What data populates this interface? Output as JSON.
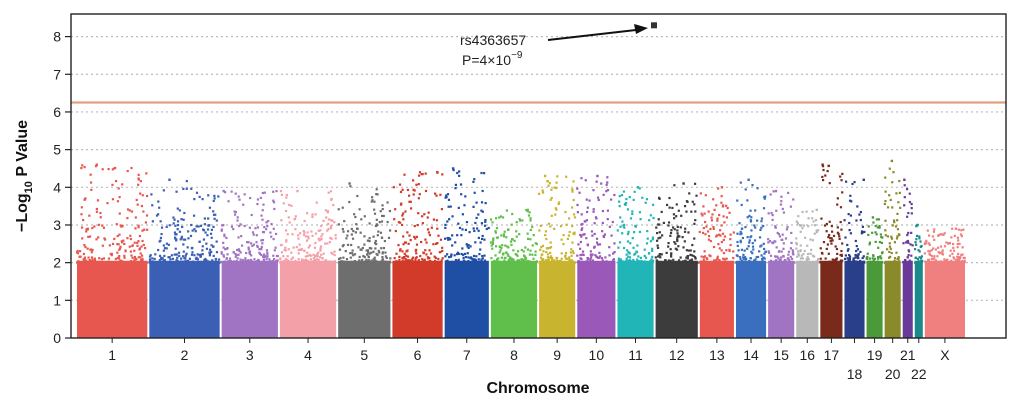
{
  "chart_data": {
    "type": "scatter",
    "subtype": "manhattan",
    "title": "",
    "xlabel": "Chromosome",
    "ylabel_main": "−Log",
    "ylabel_sub": "10",
    "ylabel_tail": " P Value",
    "ylim": [
      0,
      8.6
    ],
    "yticks": [
      "0",
      "1",
      "2",
      "3",
      "4",
      "5",
      "6",
      "7",
      "8"
    ],
    "grid": "dotted-horizontal",
    "threshold": {
      "value": 6.25,
      "color": "#e0a080"
    },
    "annotation": {
      "snp": "rs4363657",
      "p_text": "P=4×10",
      "p_exp": "−9",
      "value": 8.3,
      "chromosome": "12"
    },
    "chromosomes": [
      {
        "label": "1",
        "color": "#e8574f",
        "max": 4.6,
        "label_row": 1
      },
      {
        "label": "2",
        "color": "#3a5fb5",
        "max": 4.2,
        "label_row": 1
      },
      {
        "label": "3",
        "color": "#a074c2",
        "max": 3.9,
        "label_row": 1
      },
      {
        "label": "4",
        "color": "#f4a0a8",
        "max": 3.9,
        "label_row": 1
      },
      {
        "label": "5",
        "color": "#6e6e6e",
        "max": 4.1,
        "label_row": 1
      },
      {
        "label": "6",
        "color": "#d23a2a",
        "max": 4.4,
        "label_row": 1
      },
      {
        "label": "7",
        "color": "#1f4fa5",
        "max": 4.5,
        "label_row": 1
      },
      {
        "label": "8",
        "color": "#5fbf4a",
        "max": 3.4,
        "label_row": 1
      },
      {
        "label": "9",
        "color": "#c8b42e",
        "max": 4.3,
        "label_row": 1
      },
      {
        "label": "10",
        "color": "#9a58b8",
        "max": 4.3,
        "label_row": 1
      },
      {
        "label": "11",
        "color": "#22b5b8",
        "max": 4.0,
        "label_row": 1
      },
      {
        "label": "12",
        "color": "#3c3c3c",
        "max": 4.1,
        "label_row": 1
      },
      {
        "label": "13",
        "color": "#e8574f",
        "max": 4.0,
        "label_row": 1
      },
      {
        "label": "14",
        "color": "#3a6fc0",
        "max": 4.2,
        "label_row": 1
      },
      {
        "label": "15",
        "color": "#a074c2",
        "max": 3.9,
        "label_row": 1
      },
      {
        "label": "16",
        "color": "#b8b8b8",
        "max": 3.4,
        "label_row": 1
      },
      {
        "label": "17",
        "color": "#7a2a1a",
        "max": 4.6,
        "label_row": 1
      },
      {
        "label": "18",
        "color": "#2a3f8a",
        "max": 4.2,
        "label_row": 2
      },
      {
        "label": "19",
        "color": "#4a9a3a",
        "max": 3.2,
        "label_row": 1
      },
      {
        "label": "20",
        "color": "#8a8a2a",
        "max": 4.7,
        "label_row": 2
      },
      {
        "label": "21",
        "color": "#6a3a9a",
        "max": 4.2,
        "label_row": 1
      },
      {
        "label": "22",
        "color": "#1a8a8a",
        "max": 3.0,
        "label_row": 2
      },
      {
        "label": "X",
        "color": "#f08080",
        "max": 2.9,
        "label_row": 1
      }
    ]
  }
}
